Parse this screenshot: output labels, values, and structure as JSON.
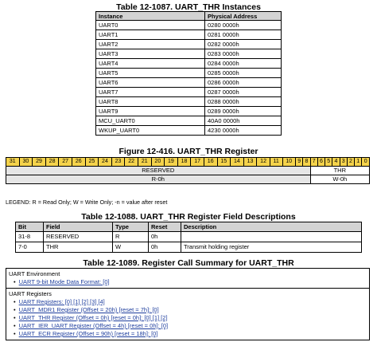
{
  "instances_table": {
    "title": "Table 12-1087. UART_THR Instances",
    "headers": [
      "Instance",
      "Physical Address"
    ],
    "rows": [
      [
        "UART0",
        "0280 0000h"
      ],
      [
        "UART1",
        "0281 0000h"
      ],
      [
        "UART2",
        "0282 0000h"
      ],
      [
        "UART3",
        "0283 0000h"
      ],
      [
        "UART4",
        "0284 0000h"
      ],
      [
        "UART5",
        "0285 0000h"
      ],
      [
        "UART6",
        "0286 0000h"
      ],
      [
        "UART7",
        "0287 0000h"
      ],
      [
        "UART8",
        "0288 0000h"
      ],
      [
        "UART9",
        "0289 0000h"
      ],
      [
        "MCU_UART0",
        "40A0 0000h"
      ],
      [
        "WKUP_UART0",
        "4230 0000h"
      ]
    ]
  },
  "register_figure": {
    "title": "Figure 12-416. UART_THR Register",
    "bits": [
      "31",
      "30",
      "29",
      "28",
      "27",
      "26",
      "25",
      "24",
      "23",
      "22",
      "21",
      "20",
      "19",
      "18",
      "17",
      "16",
      "15",
      "14",
      "13",
      "12",
      "11",
      "10",
      "9",
      "8",
      "7",
      "6",
      "5",
      "4",
      "3",
      "2",
      "1",
      "0"
    ],
    "fields": [
      {
        "name": "RESERVED",
        "reset": "R-0h",
        "span": 24
      },
      {
        "name": "THR",
        "reset": "W-0h",
        "span": 8
      }
    ]
  },
  "legend": "LEGEND: R = Read Only; W = Write Only; -n = value after reset",
  "fields_table": {
    "title": "Table 12-1088. UART_THR Register Field Descriptions",
    "headers": [
      "Bit",
      "Field",
      "Type",
      "Reset",
      "Description"
    ],
    "rows": [
      [
        "31-8",
        "RESERVED",
        "R",
        "0h",
        ""
      ],
      [
        "7-0",
        "THR",
        "W",
        "0h",
        "Transmit holding register"
      ]
    ]
  },
  "call_summary": {
    "title": "Table 12-1089. Register Call Summary for UART_THR",
    "environment": {
      "heading": "UART Environment",
      "items": [
        "UART 9-bit Mode Data Format: [0]"
      ]
    },
    "registers": {
      "heading": "UART Registers",
      "items": [
        "UART Registers: [0] [1] [2] [3] [4]",
        "UART_MDR1 Register (Offset = 20h) [reset = 7h]: [0]",
        "UART_THR Register (Offset = 0h) [reset = 0h]: [0] [1] [2]",
        "UART_IER_UART Register (Offset = 4h) [reset = 0h]: [0]",
        "UART_ECR Register (Offset = 90h) [reset = 18h]: [0]"
      ]
    }
  },
  "colors": {
    "bit_header": "#f5d34b",
    "table_header": "#d3d3d3",
    "link": "#1f3f9e"
  }
}
